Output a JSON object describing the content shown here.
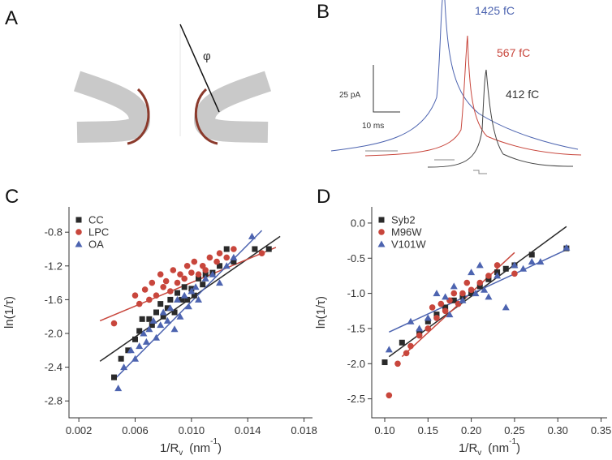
{
  "panel_a": {
    "label": "A",
    "angle_symbol": "φ"
  },
  "panel_b": {
    "label": "B",
    "traces": [
      {
        "label": "1425 fC"
      },
      {
        "label": "567 fC"
      },
      {
        "label": "412 fC"
      }
    ],
    "scale_current": "25 pA",
    "scale_time": "10 ms"
  },
  "chart_data": [
    {
      "type": "scatter",
      "panel_label": "C",
      "xlabel": [
        {
          "text": "1/R"
        },
        {
          "text": "v",
          "shift": "sub"
        },
        {
          "text": "(nm"
        },
        {
          "text": "-1",
          "shift": "super"
        },
        {
          "text": ")"
        }
      ],
      "ylabel": "ln(1/τ)",
      "xlim": [
        0.0013,
        0.0186
      ],
      "ylim": [
        -3.0,
        -0.5
      ],
      "xticks": [
        0.002,
        0.006,
        {
          "value": 0.01,
          "label": "0.010"
        },
        0.014,
        0.018
      ],
      "yticks": [
        -0.8,
        -1.2,
        -1.6,
        {
          "value": -2,
          "label": "-2.0"
        },
        -2.4,
        -2.8
      ],
      "legend": "upper left",
      "series": [
        {
          "name": "CC",
          "color": "#2a2a2a",
          "marker": "square",
          "x": [
            0.0045,
            0.005,
            0.0055,
            0.006,
            0.0063,
            0.0065,
            0.007,
            0.0072,
            0.0075,
            0.0078,
            0.008,
            0.0083,
            0.0085,
            0.0088,
            0.009,
            0.0093,
            0.0095,
            0.0097,
            0.01,
            0.0102,
            0.0105,
            0.0108,
            0.011,
            0.0115,
            0.012,
            0.0125,
            0.013,
            0.0145,
            0.0155
          ],
          "values": [
            -2.52,
            -2.3,
            -2.2,
            -2.07,
            -1.97,
            -1.83,
            -1.83,
            -1.9,
            -1.75,
            -1.65,
            -1.8,
            -1.7,
            -1.6,
            -1.75,
            -1.52,
            -1.6,
            -1.45,
            -1.6,
            -1.47,
            -1.55,
            -1.35,
            -1.42,
            -1.3,
            -1.28,
            -1.2,
            -1.0,
            -1.15,
            -1.0,
            -1.0
          ],
          "fit": {
            "x": [
              0.0035,
              0.0163
            ],
            "y": [
              -2.33,
              -0.85
            ]
          }
        },
        {
          "name": "LPC",
          "color": "#c8463c",
          "marker": "circle",
          "x": [
            0.0045,
            0.006,
            0.0063,
            0.0067,
            0.007,
            0.0072,
            0.0075,
            0.0078,
            0.008,
            0.0082,
            0.0085,
            0.0087,
            0.009,
            0.0092,
            0.0095,
            0.0097,
            0.01,
            0.0102,
            0.0105,
            0.0108,
            0.011,
            0.0113,
            0.0118,
            0.012,
            0.0125,
            0.013,
            0.015
          ],
          "values": [
            -1.88,
            -1.55,
            -1.65,
            -1.48,
            -1.6,
            -1.4,
            -1.55,
            -1.3,
            -1.45,
            -1.38,
            -1.5,
            -1.25,
            -1.4,
            -1.3,
            -1.35,
            -1.2,
            -1.28,
            -1.15,
            -1.3,
            -1.2,
            -1.25,
            -1.1,
            -1.15,
            -1.05,
            -1.1,
            -1.0,
            -1.05
          ],
          "fit": {
            "x": [
              0.0035,
              0.016
            ],
            "y": [
              -1.85,
              -0.98
            ]
          }
        },
        {
          "name": "OA",
          "color": "#4d64b0",
          "marker": "triangle",
          "x": [
            0.0048,
            0.0052,
            0.0057,
            0.006,
            0.0063,
            0.0066,
            0.0068,
            0.007,
            0.0073,
            0.0075,
            0.0078,
            0.008,
            0.0083,
            0.0085,
            0.0088,
            0.009,
            0.0092,
            0.0095,
            0.0098,
            0.01,
            0.0103,
            0.0105,
            0.011,
            0.0115,
            0.012,
            0.0125,
            0.013,
            0.0143
          ],
          "values": [
            -2.65,
            -2.4,
            -2.2,
            -2.3,
            -2.15,
            -2.0,
            -2.1,
            -1.95,
            -1.85,
            -2.05,
            -1.9,
            -1.75,
            -1.85,
            -1.7,
            -1.95,
            -1.6,
            -1.8,
            -1.55,
            -1.68,
            -1.5,
            -1.45,
            -1.6,
            -1.35,
            -1.3,
            -1.4,
            -1.2,
            -1.1,
            -0.85
          ],
          "fit": {
            "x": [
              0.0045,
              0.015
            ],
            "y": [
              -2.55,
              -0.78
            ]
          }
        }
      ]
    },
    {
      "type": "scatter",
      "panel_label": "D",
      "xlabel": [
        {
          "text": "1/R"
        },
        {
          "text": "v",
          "shift": "sub"
        },
        {
          "text": "(nm"
        },
        {
          "text": "-1",
          "shift": "super"
        },
        {
          "text": ")"
        }
      ],
      "ylabel": "ln(1/τ)",
      "xlim": [
        0.085,
        0.357
      ],
      "ylim": [
        -2.77,
        0.23
      ],
      "xticks": [
        {
          "value": 0.1,
          "label": "0.10"
        },
        0.15,
        {
          "value": 0.2,
          "label": "0.20"
        },
        0.25,
        {
          "value": 0.3,
          "label": "0.30"
        },
        0.35
      ],
      "yticks": [
        {
          "value": 0,
          "label": "0.0"
        },
        -0.5,
        {
          "value": -1,
          "label": "-1.0"
        },
        -1.5,
        {
          "value": -2,
          "label": "-2.0"
        },
        -2.5
      ],
      "legend": "upper left",
      "series": [
        {
          "name": "Syb2",
          "color": "#2a2a2a",
          "marker": "square",
          "x": [
            0.1,
            0.12,
            0.14,
            0.15,
            0.16,
            0.17,
            0.18,
            0.19,
            0.2,
            0.21,
            0.22,
            0.23,
            0.24,
            0.25,
            0.27,
            0.31
          ],
          "values": [
            -1.98,
            -1.7,
            -1.55,
            -1.4,
            -1.3,
            -1.2,
            -1.1,
            -1.05,
            -1.0,
            -0.9,
            -0.8,
            -0.7,
            -0.65,
            -0.6,
            -0.45,
            -0.36
          ],
          "fit": {
            "x": [
              0.105,
              0.31
            ],
            "y": [
              -1.9,
              -0.05
            ]
          }
        },
        {
          "name": "M96W",
          "color": "#c8463c",
          "marker": "circle",
          "x": [
            0.105,
            0.115,
            0.125,
            0.13,
            0.14,
            0.15,
            0.155,
            0.16,
            0.165,
            0.17,
            0.175,
            0.18,
            0.185,
            0.19,
            0.195,
            0.2,
            0.21,
            0.22,
            0.23,
            0.25
          ],
          "values": [
            -2.45,
            -2.0,
            -1.85,
            -1.75,
            -1.6,
            -1.5,
            -1.2,
            -1.35,
            -1.15,
            -1.25,
            -1.1,
            -1.0,
            -1.15,
            -1.0,
            -0.85,
            -0.95,
            -0.85,
            -0.75,
            -0.6,
            -0.72
          ],
          "fit": {
            "x": [
              0.12,
              0.25
            ],
            "y": [
              -1.9,
              -0.42
            ]
          }
        },
        {
          "name": "V101W",
          "color": "#4d64b0",
          "marker": "triangle",
          "x": [
            0.105,
            0.13,
            0.14,
            0.15,
            0.16,
            0.17,
            0.175,
            0.18,
            0.19,
            0.2,
            0.205,
            0.21,
            0.215,
            0.22,
            0.23,
            0.24,
            0.25,
            0.26,
            0.27,
            0.28,
            0.31
          ],
          "values": [
            -1.8,
            -1.4,
            -1.5,
            -1.35,
            -1.0,
            -1.05,
            -1.3,
            -0.9,
            -1.1,
            -0.7,
            -1.0,
            -0.6,
            -0.95,
            -1.05,
            -0.75,
            -1.2,
            -0.6,
            -0.65,
            -0.55,
            -0.55,
            -0.35
          ],
          "fit": {
            "x": [
              0.105,
              0.31
            ],
            "y": [
              -1.55,
              -0.38
            ]
          }
        }
      ]
    }
  ]
}
